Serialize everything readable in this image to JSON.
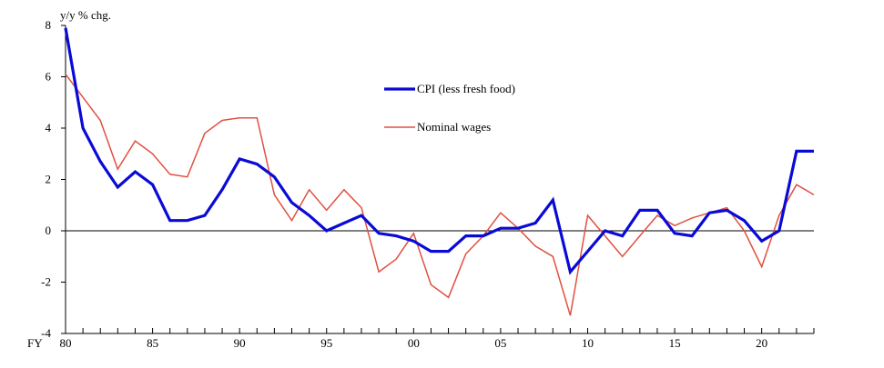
{
  "chart_data": {
    "type": "line",
    "title": "",
    "ylabel": "y/y % chg.",
    "xlabel": "",
    "x_prefix": "FY",
    "x": [
      1980,
      1981,
      1982,
      1983,
      1984,
      1985,
      1986,
      1987,
      1988,
      1989,
      1990,
      1991,
      1992,
      1993,
      1994,
      1995,
      1996,
      1997,
      1998,
      1999,
      2000,
      2001,
      2002,
      2003,
      2004,
      2005,
      2006,
      2007,
      2008,
      2009,
      2010,
      2011,
      2012,
      2013,
      2014,
      2015,
      2016,
      2017,
      2018,
      2019,
      2020,
      2021,
      2022,
      2023
    ],
    "xlim": [
      1980,
      2023
    ],
    "ylim": [
      -4,
      8
    ],
    "yticks": [
      8,
      6,
      4,
      2,
      0,
      -2,
      -4
    ],
    "yticks_labels": [
      "8",
      "6",
      "4",
      "2",
      "0",
      "-2",
      "-4"
    ],
    "xticks": [
      1980,
      1985,
      1990,
      1995,
      2000,
      2005,
      2010,
      2015,
      2020
    ],
    "xticks_labels": [
      "80",
      "85",
      "90",
      "95",
      "00",
      "05",
      "10",
      "15",
      "20"
    ],
    "zero_line": true,
    "series": [
      {
        "name": "CPI (less fresh food)",
        "color": "#0a0ad6",
        "values": [
          7.9,
          4.0,
          2.7,
          1.7,
          2.3,
          1.8,
          0.4,
          0.4,
          0.6,
          1.6,
          2.8,
          2.6,
          2.1,
          1.1,
          0.6,
          0.0,
          0.3,
          0.6,
          -0.1,
          -0.2,
          -0.4,
          -0.8,
          -0.8,
          -0.2,
          -0.2,
          0.1,
          0.1,
          0.3,
          1.2,
          -1.6,
          -0.8,
          0.0,
          -0.2,
          0.8,
          0.8,
          -0.1,
          -0.2,
          0.7,
          0.8,
          0.4,
          -0.4,
          0.0,
          3.1,
          3.1
        ]
      },
      {
        "name": "Nominal wages",
        "color": "#e05040",
        "values": [
          6.1,
          5.2,
          4.3,
          2.4,
          3.5,
          3.0,
          2.2,
          2.1,
          3.8,
          4.3,
          4.4,
          4.4,
          1.4,
          0.4,
          1.6,
          0.8,
          1.6,
          0.9,
          -1.6,
          -1.1,
          -0.1,
          -2.1,
          -2.6,
          -0.9,
          -0.2,
          0.7,
          0.1,
          -0.6,
          -1.0,
          -3.3,
          0.6,
          -0.2,
          -1.0,
          -0.2,
          0.6,
          0.2,
          0.5,
          0.7,
          0.9,
          0.0,
          -1.4,
          0.6,
          1.8,
          1.4
        ]
      }
    ],
    "legend_position": "upper-center"
  }
}
